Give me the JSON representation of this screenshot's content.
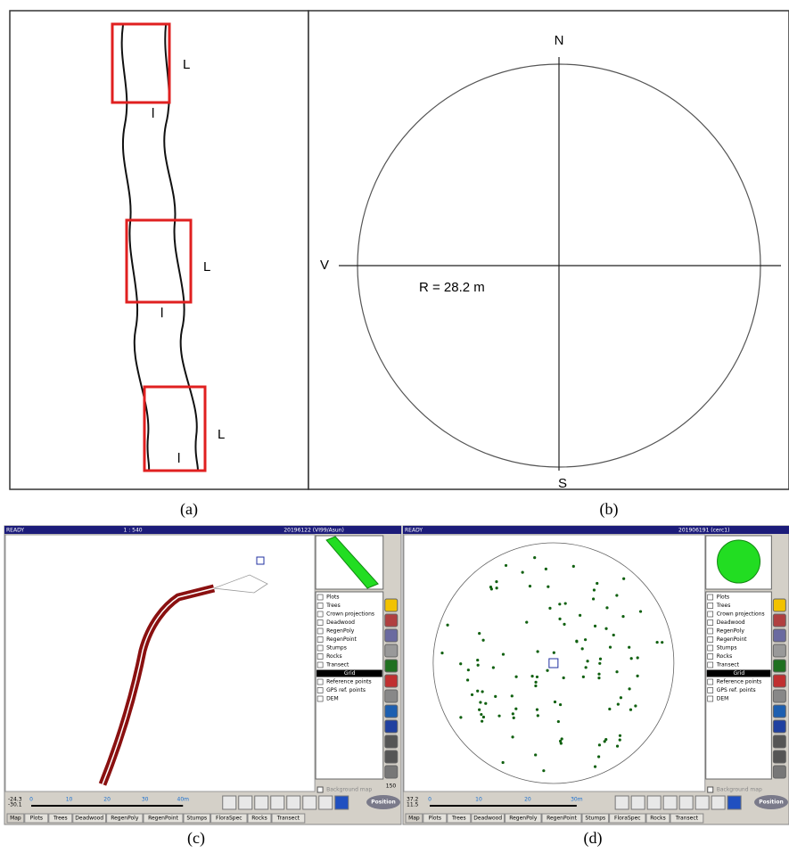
{
  "captions": [
    "(a)",
    "(b)",
    "(c)",
    "(d)"
  ],
  "panel_a": {
    "labels": [
      "L",
      "l",
      "L",
      "l",
      "L",
      "l"
    ]
  },
  "panel_b": {
    "north": "N",
    "west": "V",
    "south": "S",
    "radius_label": "R = 28.2 m"
  },
  "panel_c": {
    "status": "READY",
    "scale": "1 : 540",
    "title": "20196122 (VI99/Asun)",
    "coords": [
      "-24.3",
      "-30.1"
    ],
    "scale_labels": [
      "0",
      "10",
      "20",
      "30",
      "40m"
    ],
    "zoom": "150",
    "layers": [
      "Plots",
      "Trees",
      "Crown projections",
      "Deadwood",
      "RegenPoly",
      "RegenPoint",
      "Stumps",
      "Rocks",
      "Transect",
      "Grid",
      "Reference points",
      "GPS ref. points",
      "DEM"
    ],
    "background": "Background map",
    "button": "Position",
    "tabs": [
      "Map",
      "Plots",
      "Trees",
      "Deadwood",
      "RegenPoly",
      "RegenPoint",
      "Stumps",
      "FloraSpec",
      "Rocks",
      "Transect"
    ]
  },
  "panel_d": {
    "status": "READY",
    "title": "201906191 (cerc1)",
    "coords": [
      "37.2",
      "11.5"
    ],
    "scale_labels": [
      "0",
      "10",
      "20",
      "30m"
    ],
    "layers": [
      "Plots",
      "Trees",
      "Crown projections",
      "Deadwood",
      "RegenPoly",
      "RegenPoint",
      "Stumps",
      "Rocks",
      "Transect",
      "Grid",
      "Reference points",
      "GPS ref. points",
      "DEM"
    ],
    "background": "Background map",
    "button": "Position",
    "tabs": [
      "Map",
      "Plots",
      "Trees",
      "Deadwood",
      "RegenPoly",
      "RegenPoint",
      "Stumps",
      "FloraSpec",
      "Rocks",
      "Transect"
    ]
  }
}
